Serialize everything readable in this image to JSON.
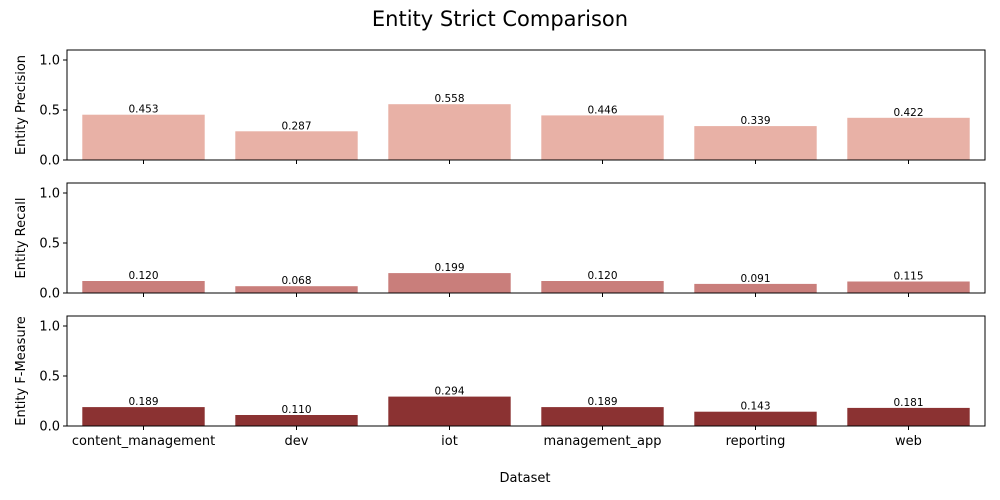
{
  "chart_data": {
    "title": "Entity Strict Comparison",
    "xlabel": "Dataset",
    "categories": [
      "content_management",
      "dev",
      "iot",
      "management_app",
      "reporting",
      "web"
    ],
    "ylim": [
      0,
      1.1
    ],
    "yticks": [
      "0.0",
      "0.5",
      "1.0"
    ],
    "panels": [
      {
        "type": "bar",
        "ylabel": "Entity Precision",
        "color": "#e8b1a6",
        "values": [
          0.453,
          0.287,
          0.558,
          0.446,
          0.339,
          0.422
        ],
        "labels": [
          "0.453",
          "0.287",
          "0.558",
          "0.446",
          "0.339",
          "0.422"
        ]
      },
      {
        "type": "bar",
        "ylabel": "Entity Recall",
        "color": "#c97e7b",
        "values": [
          0.12,
          0.068,
          0.199,
          0.12,
          0.091,
          0.115
        ],
        "labels": [
          "0.120",
          "0.068",
          "0.199",
          "0.120",
          "0.091",
          "0.115"
        ]
      },
      {
        "type": "bar",
        "ylabel": "Entity F-Measure",
        "color": "#8b3232",
        "values": [
          0.189,
          0.11,
          0.294,
          0.189,
          0.143,
          0.181
        ],
        "labels": [
          "0.189",
          "0.110",
          "0.294",
          "0.189",
          "0.143",
          "0.181"
        ]
      }
    ]
  }
}
